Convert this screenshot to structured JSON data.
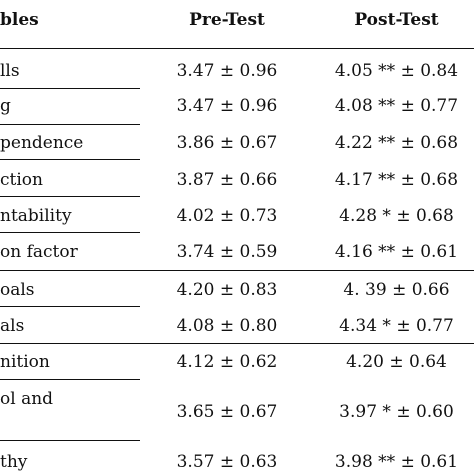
{
  "table": {
    "headers": {
      "variables": "bles",
      "pre": "Pre-Test",
      "post": "Post-Test"
    },
    "rows": [
      {
        "var": "lls",
        "pre": "3.47 ± 0.96",
        "post": "4.05 ** ± 0.84"
      },
      {
        "var": "g",
        "pre": "3.47 ± 0.96",
        "post": "4.08 ** ± 0.77"
      },
      {
        "var": "pendence",
        "pre": "3.86 ± 0.67",
        "post": "4.22 ** ± 0.68"
      },
      {
        "var": "ction",
        "pre": "3.87 ± 0.66",
        "post": "4.17 ** ± 0.68"
      },
      {
        "var": "ntability",
        "pre": "4.02 ± 0.73",
        "post": "4.28 * ± 0.68"
      },
      {
        "var": "on factor",
        "pre": "3.74 ± 0.59",
        "post": "4.16 ** ± 0.61"
      },
      {
        "var": "oals",
        "pre": "4.20 ± 0.83",
        "post": "4. 39 ± 0.66"
      },
      {
        "var": "als",
        "pre": "4.08 ± 0.80",
        "post": "4.34 * ± 0.77"
      },
      {
        "var": "nition",
        "pre": "4.12 ± 0.62",
        "post": "4.20 ± 0.64"
      },
      {
        "var": "ol and",
        "pre": "3.65 ± 0.67",
        "post": "3.97 * ± 0.60"
      },
      {
        "var": "thy",
        "pre": "3.57 ± 0.63",
        "post": "3.98 ** ± 0.61"
      }
    ]
  }
}
